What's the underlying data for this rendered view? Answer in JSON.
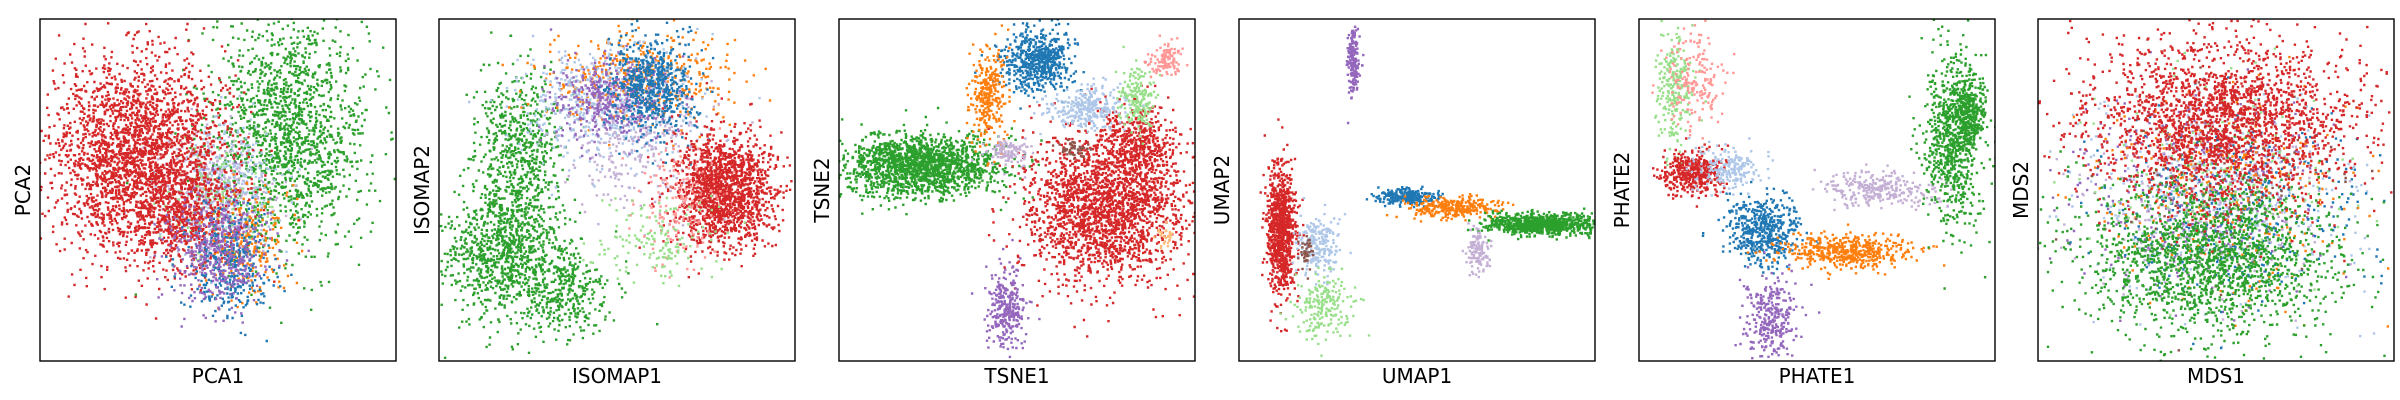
{
  "palette": {
    "blue": "#1f77b4",
    "orange": "#ff7f0e",
    "green": "#2ca02c",
    "red": "#d62728",
    "purple": "#9467bd",
    "brown": "#8c564b",
    "light_blue": "#aec7e8",
    "light_green": "#98df8a",
    "light_red": "#ff9896",
    "light_purple": "#c5b0d5",
    "light_orange": "#ffbb78"
  },
  "chart_data": [
    {
      "type": "scatter",
      "xlabel": "PCA1",
      "ylabel": "PCA2",
      "xlim": [
        0,
        100
      ],
      "ylim": [
        0,
        100
      ],
      "ticks": false,
      "grid": false,
      "legend": false,
      "clusters": [
        {
          "color": "green",
          "cx": 70,
          "cy": 67,
          "sx": 11,
          "sy": 17,
          "n": 1600
        },
        {
          "color": "light_purple",
          "cx": 48,
          "cy": 48,
          "sx": 9,
          "sy": 10,
          "n": 350
        },
        {
          "color": "light_blue",
          "cx": 52,
          "cy": 52,
          "sx": 8,
          "sy": 9,
          "n": 300
        },
        {
          "color": "light_green",
          "cx": 50,
          "cy": 45,
          "sx": 7,
          "sy": 8,
          "n": 150
        },
        {
          "color": "orange",
          "cx": 58,
          "cy": 35,
          "sx": 6,
          "sy": 8,
          "n": 250
        },
        {
          "color": "red",
          "cx": 28,
          "cy": 60,
          "sx": 12,
          "sy": 14,
          "n": 2600
        },
        {
          "color": "red",
          "cx": 40,
          "cy": 42,
          "sx": 8,
          "sy": 8,
          "n": 500
        },
        {
          "color": "blue",
          "cx": 53,
          "cy": 28,
          "sx": 6,
          "sy": 8,
          "n": 350
        },
        {
          "color": "purple",
          "cx": 50,
          "cy": 32,
          "sx": 7,
          "sy": 8,
          "n": 450
        }
      ]
    },
    {
      "type": "scatter",
      "xlabel": "ISOMAP1",
      "ylabel": "ISOMAP2",
      "xlim": [
        0,
        100
      ],
      "ylim": [
        0,
        100
      ],
      "ticks": false,
      "grid": false,
      "legend": false,
      "clusters": [
        {
          "color": "green",
          "cx": 22,
          "cy": 60,
          "sx": 6,
          "sy": 12,
          "n": 700
        },
        {
          "color": "green",
          "cx": 18,
          "cy": 30,
          "sx": 9,
          "sy": 9,
          "n": 900
        },
        {
          "color": "green",
          "cx": 35,
          "cy": 20,
          "sx": 7,
          "sy": 6,
          "n": 300
        },
        {
          "color": "orange",
          "cx": 55,
          "cy": 82,
          "sx": 13,
          "sy": 7,
          "n": 450
        },
        {
          "color": "light_blue",
          "cx": 45,
          "cy": 75,
          "sx": 12,
          "sy": 9,
          "n": 500
        },
        {
          "color": "light_purple",
          "cx": 55,
          "cy": 65,
          "sx": 10,
          "sy": 10,
          "n": 300
        },
        {
          "color": "purple",
          "cx": 48,
          "cy": 76,
          "sx": 8,
          "sy": 6,
          "n": 400
        },
        {
          "color": "blue",
          "cx": 60,
          "cy": 80,
          "sx": 6,
          "sy": 7,
          "n": 600
        },
        {
          "color": "red",
          "cx": 80,
          "cy": 50,
          "sx": 7,
          "sy": 8,
          "n": 1600
        },
        {
          "color": "light_red",
          "cx": 68,
          "cy": 45,
          "sx": 6,
          "sy": 8,
          "n": 150
        },
        {
          "color": "light_green",
          "cx": 60,
          "cy": 35,
          "sx": 8,
          "sy": 6,
          "n": 150
        }
      ]
    },
    {
      "type": "scatter",
      "xlabel": "TSNE1",
      "ylabel": "TSNE2",
      "xlim": [
        0,
        100
      ],
      "ylim": [
        0,
        100
      ],
      "ticks": false,
      "grid": false,
      "legend": false,
      "clusters": [
        {
          "color": "green",
          "cx": 22,
          "cy": 57,
          "sx": 11,
          "sy": 4.5,
          "n": 1700
        },
        {
          "color": "red",
          "cx": 75,
          "cy": 45,
          "sx": 11,
          "sy": 11,
          "n": 2200
        },
        {
          "color": "red",
          "cx": 84,
          "cy": 62,
          "sx": 5,
          "sy": 6,
          "n": 400
        },
        {
          "color": "blue",
          "cx": 56,
          "cy": 88,
          "sx": 5,
          "sy": 4.5,
          "n": 600
        },
        {
          "color": "orange",
          "cx": 42,
          "cy": 77,
          "sx": 2.5,
          "sy": 7,
          "n": 300
        },
        {
          "color": "light_blue",
          "cx": 70,
          "cy": 74,
          "sx": 5,
          "sy": 3,
          "n": 300
        },
        {
          "color": "light_green",
          "cx": 84,
          "cy": 77,
          "sx": 2.5,
          "sy": 5,
          "n": 180
        },
        {
          "color": "light_red",
          "cx": 92,
          "cy": 88,
          "sx": 2.5,
          "sy": 2.5,
          "n": 120
        },
        {
          "color": "light_purple",
          "cx": 48,
          "cy": 61,
          "sx": 3,
          "sy": 2,
          "n": 120
        },
        {
          "color": "brown",
          "cx": 66,
          "cy": 62,
          "sx": 2,
          "sy": 1.2,
          "n": 50
        },
        {
          "color": "purple",
          "cx": 47,
          "cy": 15,
          "sx": 2.5,
          "sy": 6,
          "n": 300
        },
        {
          "color": "light_orange",
          "cx": 92,
          "cy": 36,
          "sx": 1,
          "sy": 1.5,
          "n": 25
        }
      ]
    },
    {
      "type": "scatter",
      "xlabel": "UMAP1",
      "ylabel": "UMAP2",
      "xlim": [
        0,
        100
      ],
      "ylim": [
        0,
        100
      ],
      "ticks": false,
      "grid": false,
      "legend": false,
      "clusters": [
        {
          "color": "purple",
          "cx": 32,
          "cy": 88,
          "sx": 0.8,
          "sy": 5,
          "n": 180
        },
        {
          "color": "red",
          "cx": 12,
          "cy": 38,
          "sx": 2,
          "sy": 9,
          "n": 900
        },
        {
          "color": "light_blue",
          "cx": 22,
          "cy": 34,
          "sx": 3,
          "sy": 4,
          "n": 220
        },
        {
          "color": "light_green",
          "cx": 24,
          "cy": 16,
          "sx": 4,
          "sy": 5,
          "n": 200
        },
        {
          "color": "brown",
          "cx": 19,
          "cy": 32,
          "sx": 1,
          "sy": 2,
          "n": 40
        },
        {
          "color": "blue",
          "cx": 47,
          "cy": 48,
          "sx": 4,
          "sy": 1.2,
          "n": 250
        },
        {
          "color": "orange",
          "cx": 60,
          "cy": 45,
          "sx": 6,
          "sy": 1.5,
          "n": 300
        },
        {
          "color": "green",
          "cx": 85,
          "cy": 40,
          "sx": 8,
          "sy": 1.5,
          "n": 900
        },
        {
          "color": "light_purple",
          "cx": 67,
          "cy": 32,
          "sx": 1.5,
          "sy": 3.5,
          "n": 120
        }
      ]
    },
    {
      "type": "scatter",
      "xlabel": "PHATE1",
      "ylabel": "PHATE2",
      "xlim": [
        0,
        100
      ],
      "ylim": [
        0,
        100
      ],
      "ticks": false,
      "grid": false,
      "legend": false,
      "clusters": [
        {
          "color": "light_green",
          "cx": 10,
          "cy": 80,
          "sx": 2.5,
          "sy": 9,
          "n": 250
        },
        {
          "color": "light_red",
          "cx": 16,
          "cy": 82,
          "sx": 4,
          "sy": 7,
          "n": 180
        },
        {
          "color": "red",
          "cx": 15,
          "cy": 55,
          "sx": 4,
          "sy": 3,
          "n": 450
        },
        {
          "color": "light_blue",
          "cx": 25,
          "cy": 56,
          "sx": 5,
          "sy": 3,
          "n": 200
        },
        {
          "color": "blue",
          "cx": 35,
          "cy": 38,
          "sx": 5,
          "sy": 5,
          "n": 500
        },
        {
          "color": "orange",
          "cx": 58,
          "cy": 32,
          "sx": 9,
          "sy": 2.5,
          "n": 500
        },
        {
          "color": "light_purple",
          "cx": 68,
          "cy": 50,
          "sx": 8,
          "sy": 2.5,
          "n": 300
        },
        {
          "color": "green",
          "cx": 88,
          "cy": 65,
          "sx": 4,
          "sy": 13,
          "n": 800
        },
        {
          "color": "green",
          "cx": 93,
          "cy": 72,
          "sx": 2,
          "sy": 5,
          "n": 300
        },
        {
          "color": "purple",
          "cx": 37,
          "cy": 13,
          "sx": 4,
          "sy": 6,
          "n": 300
        }
      ]
    },
    {
      "type": "scatter",
      "xlabel": "MDS1",
      "ylabel": "MDS2",
      "xlim": [
        0,
        100
      ],
      "ylim": [
        0,
        100
      ],
      "ticks": false,
      "grid": false,
      "legend": false,
      "clusters": [
        {
          "color": "light_blue",
          "cx": 50,
          "cy": 48,
          "sx": 20,
          "sy": 15,
          "n": 400
        },
        {
          "color": "purple",
          "cx": 45,
          "cy": 50,
          "sx": 18,
          "sy": 15,
          "n": 400
        },
        {
          "color": "blue",
          "cx": 55,
          "cy": 46,
          "sx": 18,
          "sy": 14,
          "n": 400
        },
        {
          "color": "orange",
          "cx": 52,
          "cy": 50,
          "sx": 18,
          "sy": 15,
          "n": 300
        },
        {
          "color": "light_purple",
          "cx": 48,
          "cy": 45,
          "sx": 18,
          "sy": 14,
          "n": 250
        },
        {
          "color": "light_green",
          "cx": 50,
          "cy": 50,
          "sx": 19,
          "sy": 14,
          "n": 200
        },
        {
          "color": "brown",
          "cx": 50,
          "cy": 48,
          "sx": 18,
          "sy": 14,
          "n": 100
        },
        {
          "color": "green",
          "cx": 48,
          "cy": 30,
          "sx": 18,
          "sy": 11,
          "n": 1800
        },
        {
          "color": "red",
          "cx": 52,
          "cy": 70,
          "sx": 19,
          "sy": 12,
          "n": 2300
        }
      ]
    }
  ]
}
